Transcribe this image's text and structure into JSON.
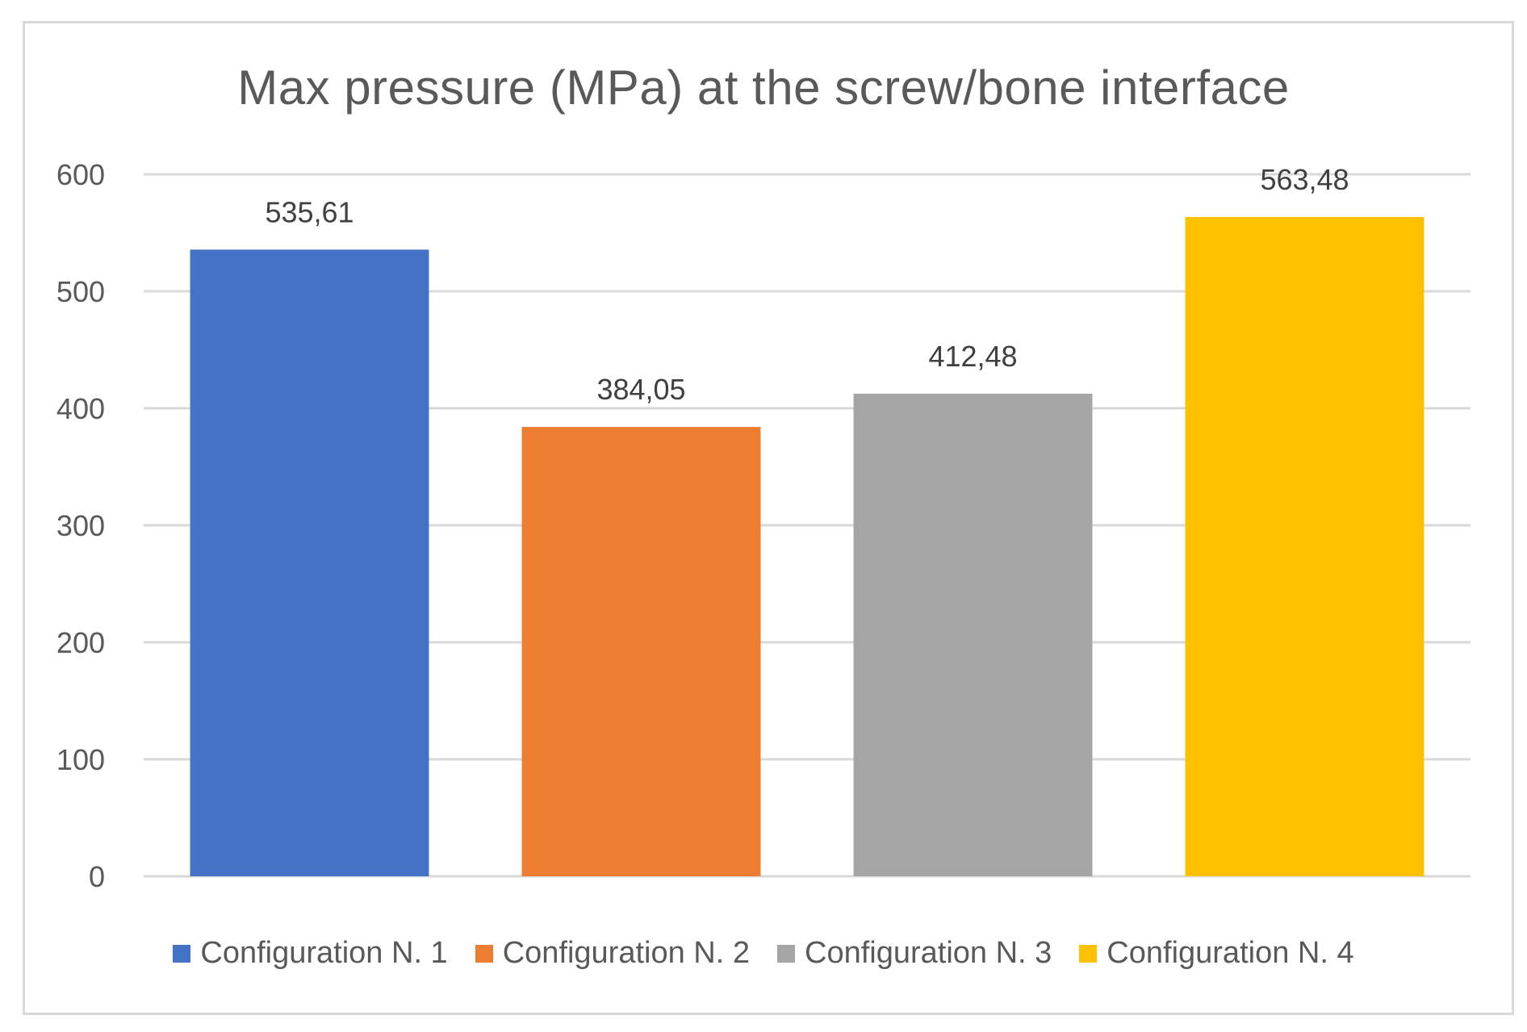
{
  "chart_data": {
    "type": "bar",
    "title": "Max pressure (MPa) at the screw/bone interface",
    "categories": [
      "Configuration N. 1",
      "Configuration N. 2",
      "Configuration N. 3",
      "Configuration N. 4"
    ],
    "values": [
      535.61,
      384.05,
      412.48,
      563.48
    ],
    "data_labels": [
      "535,61",
      "384,05",
      "412,48",
      "563,48"
    ],
    "colors": [
      "#4472c4",
      "#ed7d31",
      "#a5a5a5",
      "#ffc000"
    ],
    "ylim": [
      0,
      600
    ],
    "yticks": [
      0,
      100,
      200,
      300,
      400,
      500,
      600
    ],
    "grid": true,
    "legend_position": "bottom",
    "xlabel": "",
    "ylabel": ""
  }
}
